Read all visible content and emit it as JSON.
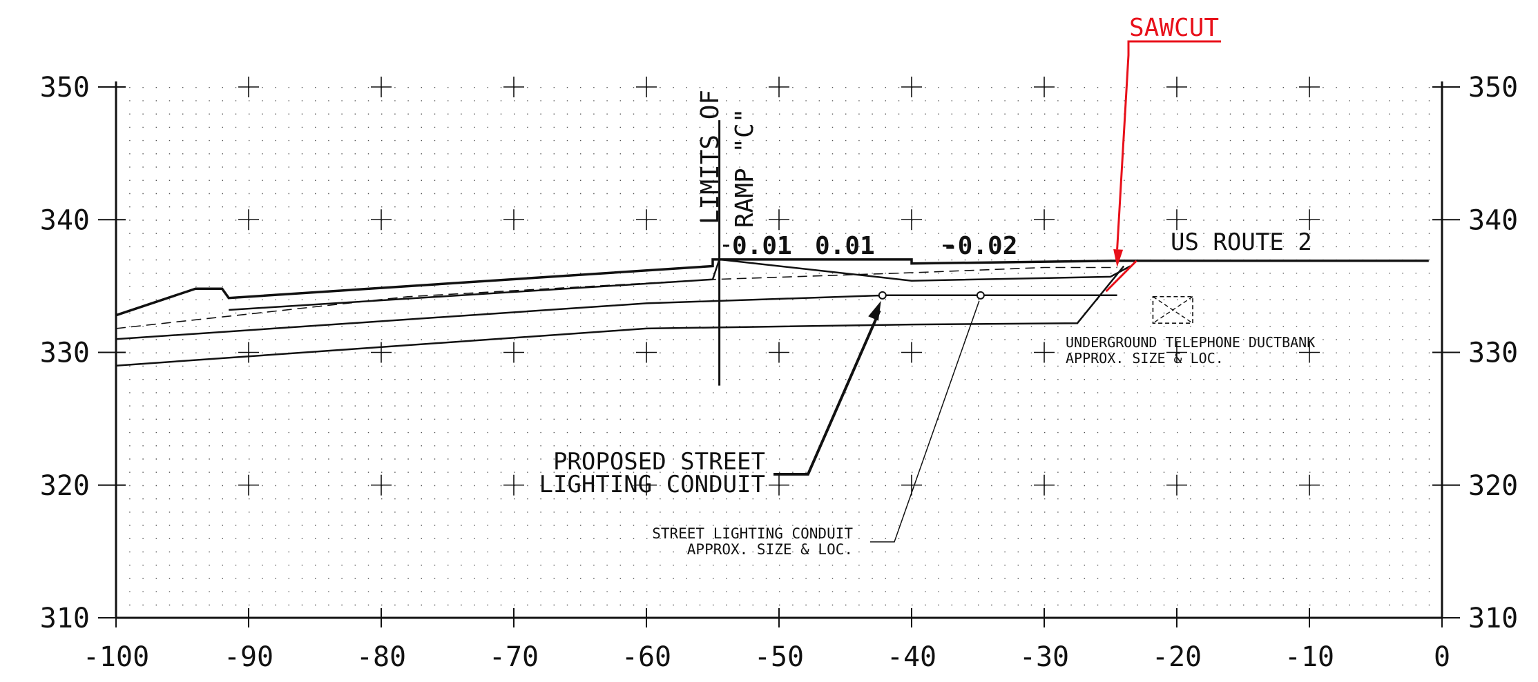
{
  "chart_data": {
    "type": "cross-section",
    "xlim": [
      -100,
      0
    ],
    "ylim": [
      310,
      350
    ],
    "x_ticks": [
      "-100",
      "-90",
      "-80",
      "-70",
      "-60",
      "-50",
      "-40",
      "-30",
      "-20",
      "-10",
      "0"
    ],
    "y_ticks": [
      "350",
      "340",
      "330",
      "320",
      "310"
    ],
    "grid": "dotted",
    "colors": {
      "ink": "#111111",
      "annotation": "#e8101a",
      "dots": "#555555"
    },
    "limit_line": {
      "x": -54.5,
      "y_range": [
        327.5,
        347.5
      ],
      "labels": [
        "LIMITS OF",
        "RAMP \"C\""
      ]
    },
    "slopes": [
      "0.01",
      "0.01",
      "-0.02"
    ],
    "road_label": "US ROUTE 2",
    "sawcut_label": "SAWCUT",
    "sawcut_point": {
      "x": -24.5,
      "y": 336.2
    },
    "notes": {
      "proposed_conduit": [
        "PROPOSED STREET",
        "LIGHTING CONDUIT"
      ],
      "existing_conduit": [
        "STREET LIGHTING CONDUIT",
        "APPROX. SIZE & LOC."
      ],
      "ductbank": [
        "UNDERGROUND TELEPHONE DUCTBANK",
        "APPROX. SIZE & LOC."
      ]
    },
    "profiles": {
      "finished_grade": [
        [
          -100,
          332.8
        ],
        [
          -94,
          334.8
        ],
        [
          -92,
          334.8
        ],
        [
          -91.5,
          334.1
        ],
        [
          -55,
          336.5
        ],
        [
          -55,
          337
        ],
        [
          -40,
          337
        ],
        [
          -40,
          336.7
        ],
        [
          -24.5,
          336.9
        ],
        [
          -1,
          336.9
        ]
      ],
      "pavement_bottom": [
        [
          -91.5,
          333.2
        ],
        [
          -55,
          335.5
        ],
        [
          -54.5,
          337
        ],
        [
          -40,
          335.4
        ],
        [
          -25,
          335.7
        ],
        [
          -23.5,
          336.5
        ]
      ],
      "subbase": [
        [
          -100,
          331
        ],
        [
          -60,
          333.7
        ],
        [
          -42,
          334.3
        ],
        [
          -24.5,
          334.3
        ]
      ],
      "bottom_excavation": [
        [
          -100,
          329
        ],
        [
          -60,
          331.8
        ],
        [
          -40,
          332.1
        ],
        [
          -27.5,
          332.2
        ],
        [
          -24,
          336.5
        ]
      ],
      "existing_ground": [
        [
          -100,
          331.8
        ],
        [
          -78,
          334.2
        ],
        [
          -55,
          335.5
        ],
        [
          -40,
          336
        ],
        [
          -30,
          336.4
        ],
        [
          -24.5,
          336.4
        ]
      ]
    },
    "conduit_points": [
      {
        "x": -42.2,
        "y": 334.3
      },
      {
        "x": -34.8,
        "y": 334.3
      }
    ],
    "ductbank_box": {
      "x": [
        -21.8,
        -18.8
      ],
      "y": [
        332.2,
        334.2
      ]
    }
  }
}
